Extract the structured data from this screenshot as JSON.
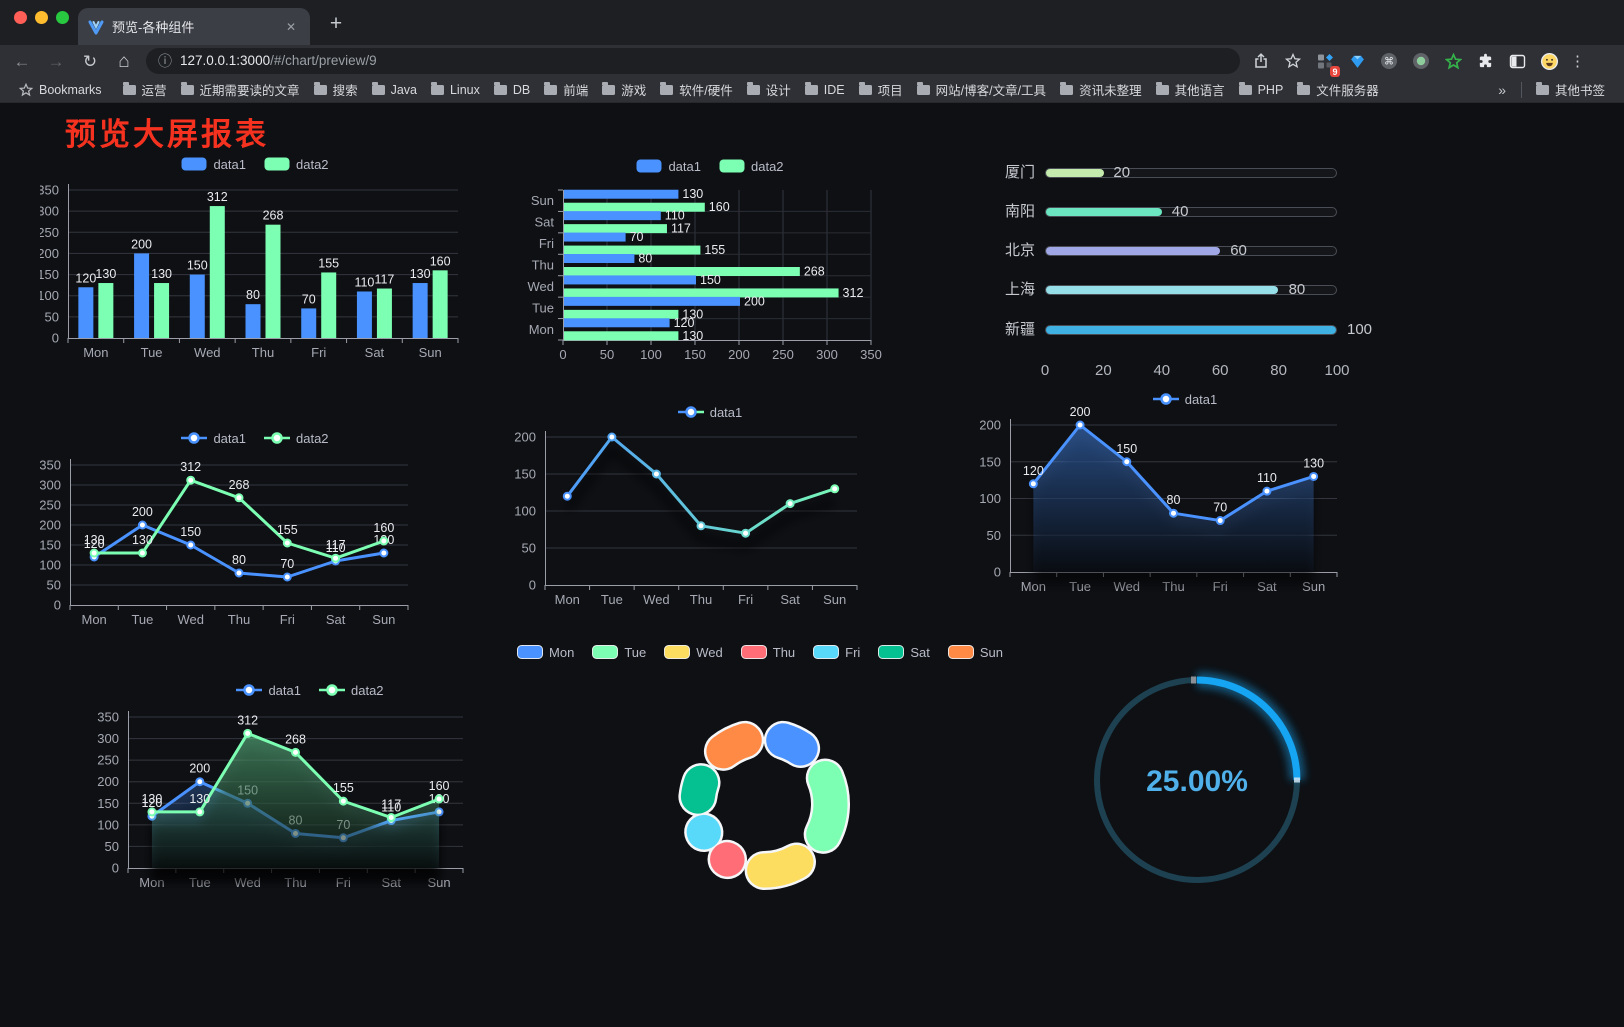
{
  "browser": {
    "tab_title": "预览-各种组件",
    "url_host": "127.0.0.1:3000",
    "url_path": "/#/chart/preview/9",
    "bookmarks_label": "Bookmarks",
    "bookmarks": [
      "运营",
      "近期需要读的文章",
      "搜索",
      "Java",
      "Linux",
      "DB",
      "前端",
      "游戏",
      "软件/硬件",
      "设计",
      "IDE",
      "项目",
      "网站/博客/文章/工具",
      "资讯未整理",
      "其他语言",
      "PHP",
      "文件服务器"
    ],
    "overflow_chevron": "»",
    "other_bookmarks_label": "其他书签",
    "extension_badge": "9"
  },
  "page": {
    "title": "预览大屏报表",
    "title_color": "#f5321f",
    "background": "#0e1014"
  },
  "chart_data": [
    {
      "id": "grouped-bar",
      "type": "bar",
      "categories": [
        "Mon",
        "Tue",
        "Wed",
        "Thu",
        "Fri",
        "Sat",
        "Sun"
      ],
      "series": [
        {
          "name": "data1",
          "color": "#4992ff",
          "values": [
            120,
            200,
            150,
            80,
            70,
            110,
            130
          ]
        },
        {
          "name": "data2",
          "color": "#7cffb2",
          "values": [
            130,
            130,
            312,
            268,
            155,
            117,
            160
          ]
        }
      ],
      "ylim": [
        0,
        350
      ],
      "ytick_step": 50,
      "value_labels": true,
      "legend_position": "top",
      "grid": true
    },
    {
      "id": "grouped-hbar",
      "type": "hbar",
      "categories_top_to_bottom": [
        "Sun",
        "Sat",
        "Fri",
        "Thu",
        "Wed",
        "Tue",
        "Mon"
      ],
      "series": [
        {
          "name": "data1",
          "color": "#4992ff",
          "values": [
            130,
            110,
            70,
            80,
            150,
            200,
            120
          ]
        },
        {
          "name": "data2",
          "color": "#7cffb2",
          "values": [
            160,
            117,
            155,
            268,
            312,
            130,
            130
          ]
        }
      ],
      "xlim": [
        0,
        350
      ],
      "xtick_step": 50,
      "value_labels": true,
      "legend_position": "top",
      "grid": true
    },
    {
      "id": "progress",
      "type": "progress",
      "items": [
        {
          "label": "厦门",
          "value": 20,
          "color": "#c4ebad"
        },
        {
          "label": "南阳",
          "value": 40,
          "color": "#6be6c1"
        },
        {
          "label": "北京",
          "value": 60,
          "color": "#a0a7e6"
        },
        {
          "label": "上海",
          "value": 80,
          "color": "#96dee8"
        },
        {
          "label": "新疆",
          "value": 100,
          "color": "#3fb1e3"
        }
      ],
      "xlim": [
        0,
        100
      ],
      "xticks": [
        0,
        20,
        40,
        60,
        80,
        100
      ]
    },
    {
      "id": "multi-line",
      "type": "line",
      "categories": [
        "Mon",
        "Tue",
        "Wed",
        "Thu",
        "Fri",
        "Sat",
        "Sun"
      ],
      "series": [
        {
          "name": "data1",
          "color": "#4992ff",
          "values": [
            120,
            200,
            150,
            80,
            70,
            110,
            130
          ]
        },
        {
          "name": "data2",
          "color": "#7cffb2",
          "values": [
            130,
            130,
            312,
            268,
            155,
            117,
            160
          ]
        }
      ],
      "ylim": [
        0,
        350
      ],
      "ytick_step": 50,
      "value_labels": true,
      "legend_position": "top",
      "grid": true
    },
    {
      "id": "gradient-line",
      "type": "line",
      "categories": [
        "Mon",
        "Tue",
        "Wed",
        "Thu",
        "Fri",
        "Sat",
        "Sun"
      ],
      "series": [
        {
          "name": "data1",
          "color_gradient": [
            "#4992ff",
            "#7cffb2"
          ],
          "color": "#4992ff",
          "values": [
            120,
            200,
            150,
            80,
            70,
            110,
            130
          ]
        }
      ],
      "ylim": [
        0,
        200
      ],
      "ytick_step": 50,
      "value_labels": false,
      "shadow": true,
      "legend_position": "top",
      "grid": true
    },
    {
      "id": "area-line",
      "type": "area",
      "categories": [
        "Mon",
        "Tue",
        "Wed",
        "Thu",
        "Fri",
        "Sat",
        "Sun"
      ],
      "series": [
        {
          "name": "data1",
          "color": "#4992ff",
          "values": [
            120,
            200,
            150,
            80,
            70,
            110,
            130
          ]
        }
      ],
      "ylim": [
        0,
        200
      ],
      "ytick_step": 50,
      "value_labels": true,
      "shadow": true,
      "legend_position": "top",
      "grid": true
    },
    {
      "id": "multi-area",
      "type": "area",
      "categories": [
        "Mon",
        "Tue",
        "Wed",
        "Thu",
        "Fri",
        "Sat",
        "Sun"
      ],
      "series": [
        {
          "name": "data1",
          "color": "#4992ff",
          "values": [
            120,
            200,
            150,
            80,
            70,
            110,
            130
          ]
        },
        {
          "name": "data2",
          "color": "#7cffb2",
          "values": [
            130,
            130,
            312,
            268,
            155,
            117,
            160
          ]
        }
      ],
      "ylim": [
        0,
        350
      ],
      "ytick_step": 50,
      "value_labels": true,
      "shadow": true,
      "legend_position": "top",
      "grid": true
    },
    {
      "id": "donut",
      "type": "pie",
      "items": [
        {
          "label": "Mon",
          "value": 120,
          "color": "#4992ff"
        },
        {
          "label": "Tue",
          "value": 200,
          "color": "#7cffb2"
        },
        {
          "label": "Wed",
          "value": 150,
          "color": "#fddd60"
        },
        {
          "label": "Thu",
          "value": 80,
          "color": "#ff6e76"
        },
        {
          "label": "Fri",
          "value": 70,
          "color": "#58d9f9"
        },
        {
          "label": "Sat",
          "value": 110,
          "color": "#05c091"
        },
        {
          "label": "Sun",
          "value": 130,
          "color": "#ff8a45"
        }
      ],
      "legend_position": "top",
      "border_color": "#f4f6f8"
    },
    {
      "id": "gauge",
      "type": "gauge",
      "value": 25,
      "max": 100,
      "display": "25.00%",
      "color": "#15a5f2",
      "track_color": "#1d4150",
      "text_color": "#4fb0ea"
    }
  ]
}
